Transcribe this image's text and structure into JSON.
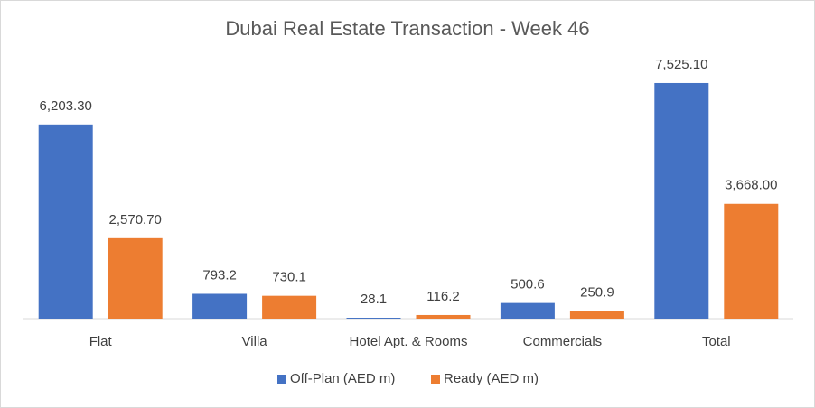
{
  "chart_data": {
    "type": "bar",
    "title": "Dubai Real Estate Transaction - Week 46",
    "categories": [
      "Flat",
      "Villa",
      "Hotel Apt. & Rooms",
      "Commercials",
      "Total"
    ],
    "series": [
      {
        "name": "Off-Plan (AED m)",
        "color": "#4472c4",
        "values": [
          6203.3,
          793.2,
          28.1,
          500.6,
          7525.1
        ],
        "value_labels": [
          "6,203.30",
          "793.2",
          "28.1",
          "500.6",
          "7,525.10"
        ]
      },
      {
        "name": "Ready (AED m)",
        "color": "#ed7d31",
        "values": [
          2570.7,
          730.1,
          116.2,
          250.9,
          3668.0
        ],
        "value_labels": [
          "2,570.70",
          "730.1",
          "116.2",
          "250.9",
          "3,668.00"
        ]
      }
    ],
    "ylim": [
      0,
      8000
    ],
    "legend": "bottom"
  }
}
